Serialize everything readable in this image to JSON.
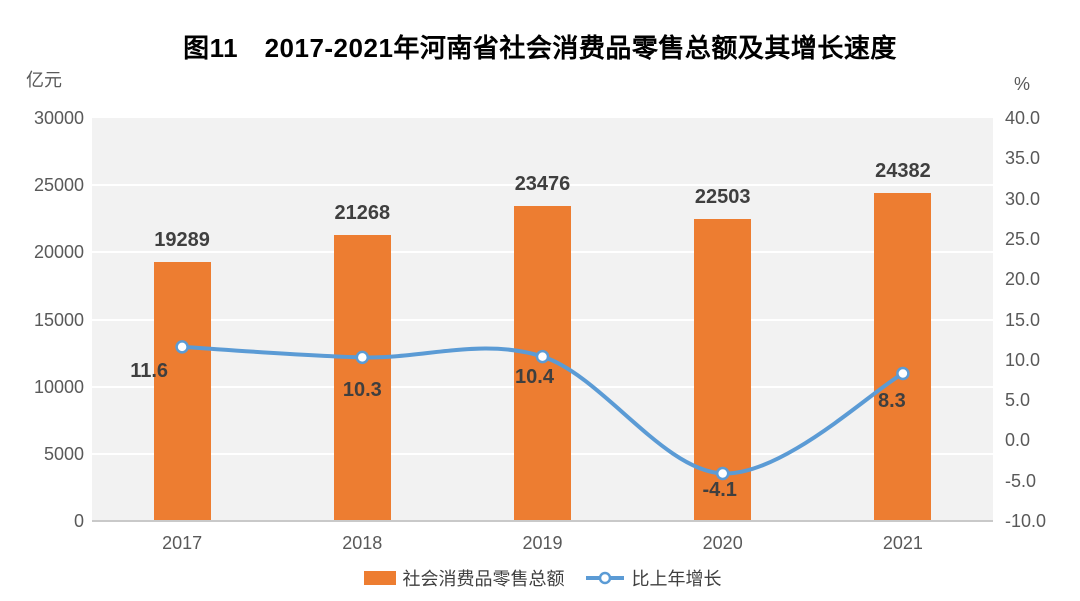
{
  "title": "图11　2017-2021年河南省社会消费品零售总额及其增长速度",
  "left_axis": {
    "unit": "亿元",
    "ticks": [
      "30000",
      "25000",
      "20000",
      "15000",
      "10000",
      "5000",
      "0"
    ]
  },
  "right_axis": {
    "unit": "%",
    "ticks": [
      "40.0",
      "35.0",
      "30.0",
      "25.0",
      "20.0",
      "15.0",
      "10.0",
      "5.0",
      "0.0",
      "-5.0",
      "-10.0"
    ]
  },
  "chart_data": {
    "type": "bar+line",
    "title": "图11　2017-2021年河南省社会消费品零售总额及其增长速度",
    "categories": [
      "2017",
      "2018",
      "2019",
      "2020",
      "2021"
    ],
    "series": [
      {
        "name": "社会消费品零售总额",
        "type": "bar",
        "axis": "left",
        "values": [
          19289,
          21268,
          23476,
          22503,
          24382
        ]
      },
      {
        "name": "比上年增长",
        "type": "line",
        "axis": "right",
        "values": [
          11.6,
          10.3,
          10.4,
          -4.1,
          8.3
        ]
      }
    ],
    "ylim_left": [
      0,
      30000
    ],
    "ylim_right": [
      -10,
      40
    ],
    "ylabel_left": "亿元",
    "ylabel_right": "%",
    "grid": true,
    "legend_position": "bottom"
  },
  "legend": {
    "bar_label": "社会消费品零售总额",
    "line_label": "比上年增长"
  },
  "colors": {
    "bar": "#ED7D31",
    "line": "#5B9BD5",
    "marker_fill": "#FFFFFF",
    "plot_bg": "#F2F2F2",
    "gridline": "#FFFFFF",
    "axis_line": "#C9C9C9",
    "tick_label": "#595959",
    "data_label": "#3F3F3F"
  }
}
